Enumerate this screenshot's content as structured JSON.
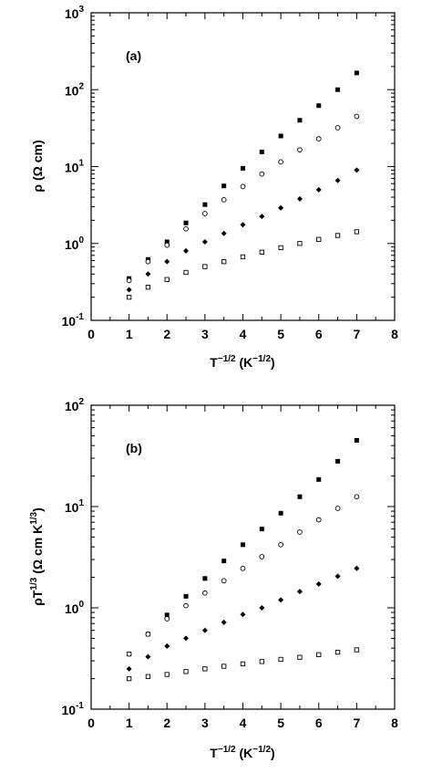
{
  "chart_data": [
    {
      "type": "scatter",
      "panel_label": "(a)",
      "xlabel": "T^(-1/2) (K^(-1/2))",
      "ylabel": "ρ (Ω cm)",
      "xlim": [
        0,
        8
      ],
      "ylim": [
        0.1,
        1000
      ],
      "yscale": "log",
      "x_ticks": [
        0,
        1,
        2,
        3,
        4,
        5,
        6,
        7,
        8
      ],
      "x_tick_labels": [
        "0",
        "1",
        "2",
        "3",
        "4",
        "5",
        "6",
        "7",
        "8"
      ],
      "y_ticks": [
        0.1,
        1,
        10,
        100,
        1000
      ],
      "y_tick_mantissas": [
        "10",
        "10",
        "10",
        "10",
        "10"
      ],
      "y_tick_exponents": [
        "-1",
        "0",
        "1",
        "2",
        "3"
      ],
      "series": [
        {
          "marker": "filled-square",
          "points": [
            [
              1.0,
              0.35
            ],
            [
              1.5,
              0.62
            ],
            [
              2.0,
              1.05
            ],
            [
              2.5,
              1.85
            ],
            [
              3.0,
              3.2
            ],
            [
              3.5,
              5.6
            ],
            [
              4.0,
              9.5
            ],
            [
              4.5,
              15.5
            ],
            [
              5.0,
              25
            ],
            [
              5.5,
              40
            ],
            [
              6.0,
              62
            ],
            [
              6.5,
              100
            ],
            [
              7.0,
              165
            ]
          ]
        },
        {
          "marker": "open-circle",
          "points": [
            [
              1.0,
              0.33
            ],
            [
              1.5,
              0.58
            ],
            [
              2.0,
              0.95
            ],
            [
              2.5,
              1.55
            ],
            [
              3.0,
              2.45
            ],
            [
              3.5,
              3.7
            ],
            [
              4.0,
              5.5
            ],
            [
              4.5,
              8.0
            ],
            [
              5.0,
              11.5
            ],
            [
              5.5,
              16.5
            ],
            [
              6.0,
              23
            ],
            [
              6.5,
              32
            ],
            [
              7.0,
              45
            ]
          ]
        },
        {
          "marker": "filled-diamond",
          "points": [
            [
              1.0,
              0.25
            ],
            [
              1.5,
              0.4
            ],
            [
              2.0,
              0.58
            ],
            [
              2.5,
              0.8
            ],
            [
              3.0,
              1.05
            ],
            [
              3.5,
              1.35
            ],
            [
              4.0,
              1.75
            ],
            [
              4.5,
              2.25
            ],
            [
              5.0,
              2.9
            ],
            [
              5.5,
              3.8
            ],
            [
              6.0,
              5.0
            ],
            [
              6.5,
              6.6
            ],
            [
              7.0,
              9.0
            ]
          ]
        },
        {
          "marker": "open-square",
          "points": [
            [
              1.0,
              0.2
            ],
            [
              1.5,
              0.27
            ],
            [
              2.0,
              0.34
            ],
            [
              2.5,
              0.42
            ],
            [
              3.0,
              0.5
            ],
            [
              3.5,
              0.58
            ],
            [
              4.0,
              0.67
            ],
            [
              4.5,
              0.77
            ],
            [
              5.0,
              0.88
            ],
            [
              5.5,
              1.0
            ],
            [
              6.0,
              1.13
            ],
            [
              6.5,
              1.27
            ],
            [
              7.0,
              1.42
            ]
          ]
        }
      ]
    },
    {
      "type": "scatter",
      "panel_label": "(b)",
      "xlabel": "T^(-1/2) (K^(-1/2))",
      "ylabel": "ρT^(1/3) (Ω cm K^(1/3))",
      "xlim": [
        0,
        8
      ],
      "ylim": [
        0.1,
        100
      ],
      "yscale": "log",
      "x_ticks": [
        0,
        1,
        2,
        3,
        4,
        5,
        6,
        7,
        8
      ],
      "x_tick_labels": [
        "0",
        "1",
        "2",
        "3",
        "4",
        "5",
        "6",
        "7",
        "8"
      ],
      "y_ticks": [
        0.1,
        1,
        10,
        100
      ],
      "y_tick_mantissas": [
        "10",
        "10",
        "10",
        "10"
      ],
      "y_tick_exponents": [
        "-1",
        "0",
        "1",
        "2"
      ],
      "series": [
        {
          "marker": "filled-square",
          "points": [
            [
              1.0,
              0.35
            ],
            [
              1.5,
              0.55
            ],
            [
              2.0,
              0.85
            ],
            [
              2.5,
              1.3
            ],
            [
              3.0,
              1.95
            ],
            [
              3.5,
              2.9
            ],
            [
              4.0,
              4.2
            ],
            [
              4.5,
              6.0
            ],
            [
              5.0,
              8.6
            ],
            [
              5.5,
              12.5
            ],
            [
              6.0,
              18.5
            ],
            [
              6.5,
              28
            ],
            [
              7.0,
              45
            ]
          ]
        },
        {
          "marker": "open-circle",
          "points": [
            [
              1.0,
              0.35
            ],
            [
              1.5,
              0.55
            ],
            [
              2.0,
              0.78
            ],
            [
              2.5,
              1.05
            ],
            [
              3.0,
              1.4
            ],
            [
              3.5,
              1.85
            ],
            [
              4.0,
              2.45
            ],
            [
              4.5,
              3.2
            ],
            [
              5.0,
              4.2
            ],
            [
              5.5,
              5.6
            ],
            [
              6.0,
              7.4
            ],
            [
              6.5,
              9.6
            ],
            [
              7.0,
              12.5
            ]
          ]
        },
        {
          "marker": "filled-diamond",
          "points": [
            [
              1.0,
              0.25
            ],
            [
              1.5,
              0.33
            ],
            [
              2.0,
              0.42
            ],
            [
              2.5,
              0.5
            ],
            [
              3.0,
              0.6
            ],
            [
              3.5,
              0.72
            ],
            [
              4.0,
              0.86
            ],
            [
              4.5,
              1.0
            ],
            [
              5.0,
              1.2
            ],
            [
              5.5,
              1.45
            ],
            [
              6.0,
              1.72
            ],
            [
              6.5,
              2.05
            ],
            [
              7.0,
              2.45
            ]
          ]
        },
        {
          "marker": "open-square",
          "points": [
            [
              1.0,
              0.2
            ],
            [
              1.5,
              0.21
            ],
            [
              2.0,
              0.22
            ],
            [
              2.5,
              0.235
            ],
            [
              3.0,
              0.25
            ],
            [
              3.5,
              0.265
            ],
            [
              4.0,
              0.28
            ],
            [
              4.5,
              0.295
            ],
            [
              5.0,
              0.31
            ],
            [
              5.5,
              0.325
            ],
            [
              6.0,
              0.345
            ],
            [
              6.5,
              0.365
            ],
            [
              7.0,
              0.385
            ]
          ]
        }
      ]
    }
  ]
}
